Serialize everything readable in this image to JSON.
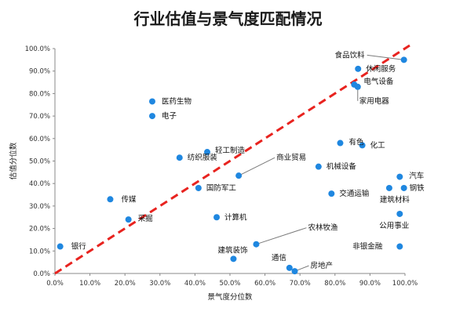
{
  "chart_data": {
    "type": "scatter",
    "title": "行业估值与景气度匹配情况",
    "xlabel": "景气度分位数",
    "ylabel": "估值分位数",
    "xlim": [
      0,
      1
    ],
    "ylim": [
      0,
      1
    ],
    "x_ticks": [
      "0.0%",
      "10.0%",
      "20.0%",
      "30.0%",
      "40.0%",
      "50.0%",
      "60.0%",
      "70.0%",
      "80.0%",
      "90.0%",
      "100.0%"
    ],
    "y_ticks": [
      "0.0%",
      "10.0%",
      "20.0%",
      "30.0%",
      "40.0%",
      "50.0%",
      "60.0%",
      "70.0%",
      "80.0%",
      "90.0%",
      "100.0%"
    ],
    "grid": false,
    "point_color": "#1f87e0",
    "reference_line": {
      "from": [
        0,
        0
      ],
      "to": [
        1,
        1
      ],
      "style": "dashed",
      "color": "#e8231f"
    },
    "points": [
      {
        "name": "银行",
        "x": 0.015,
        "y": 0.12
      },
      {
        "name": "传媒",
        "x": 0.158,
        "y": 0.33
      },
      {
        "name": "采掘",
        "x": 0.21,
        "y": 0.24
      },
      {
        "name": "医药生物",
        "x": 0.278,
        "y": 0.765
      },
      {
        "name": "电子",
        "x": 0.278,
        "y": 0.7
      },
      {
        "name": "纺织服装",
        "x": 0.356,
        "y": 0.515
      },
      {
        "name": "国防军工",
        "x": 0.41,
        "y": 0.38
      },
      {
        "name": "轻工制造",
        "x": 0.435,
        "y": 0.54
      },
      {
        "name": "计算机",
        "x": 0.462,
        "y": 0.25
      },
      {
        "name": "商业贸易",
        "x": 0.525,
        "y": 0.435
      },
      {
        "name": "建筑装饰",
        "x": 0.51,
        "y": 0.065
      },
      {
        "name": "农林牧渔",
        "x": 0.575,
        "y": 0.13
      },
      {
        "name": "通信",
        "x": 0.67,
        "y": 0.025
      },
      {
        "name": "房地产",
        "x": 0.685,
        "y": 0.01
      },
      {
        "name": "机械设备",
        "x": 0.753,
        "y": 0.475
      },
      {
        "name": "交通运输",
        "x": 0.79,
        "y": 0.355
      },
      {
        "name": "有色",
        "x": 0.815,
        "y": 0.58
      },
      {
        "name": "化工",
        "x": 0.878,
        "y": 0.57
      },
      {
        "name": "食品饮料",
        "x": 0.997,
        "y": 0.95
      },
      {
        "name": "休闲服务",
        "x": 0.866,
        "y": 0.91
      },
      {
        "name": "电气设备",
        "x": 0.855,
        "y": 0.84
      },
      {
        "name": "家用电器",
        "x": 0.865,
        "y": 0.83
      },
      {
        "name": "汽车",
        "x": 0.985,
        "y": 0.43
      },
      {
        "name": "建筑材料",
        "x": 0.955,
        "y": 0.38
      },
      {
        "name": "钢铁",
        "x": 0.997,
        "y": 0.38
      },
      {
        "name": "公用事业",
        "x": 0.985,
        "y": 0.265
      },
      {
        "name": "非银金融",
        "x": 0.985,
        "y": 0.12
      }
    ]
  }
}
